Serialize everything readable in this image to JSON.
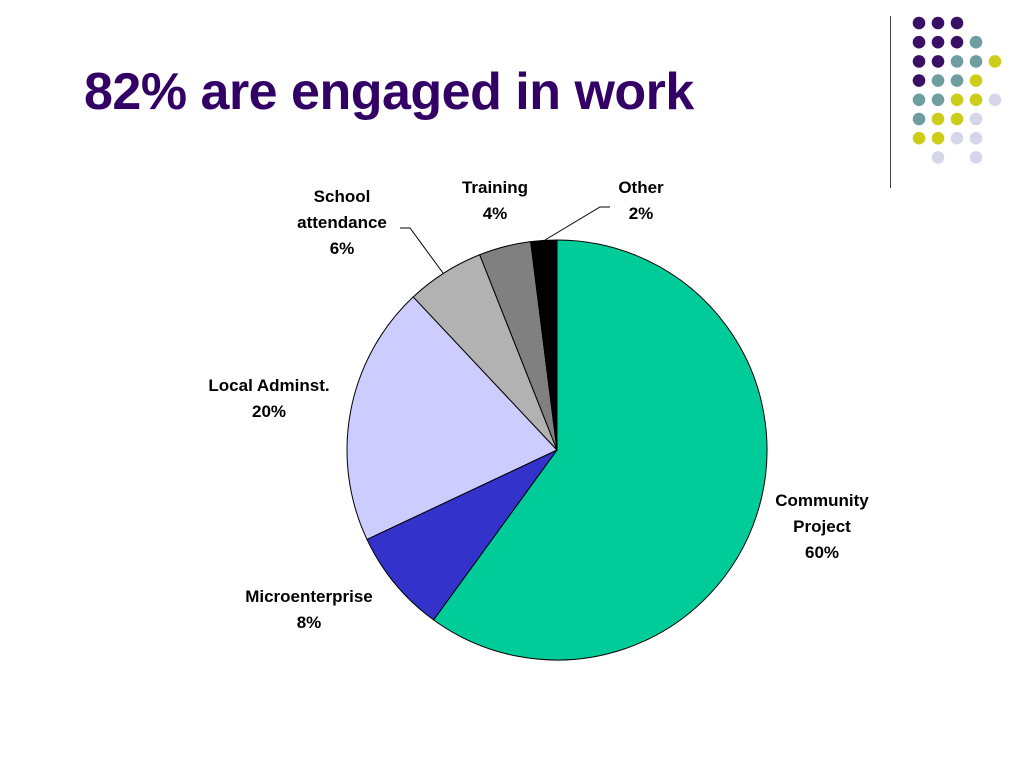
{
  "slide": {
    "title": "82% are engaged in work"
  },
  "decoration": {
    "dot_colors": {
      "purple": "#3a0f66",
      "teal": "#6f9ea0",
      "yellow": "#cccc1a",
      "lavender": "#d6d6ea"
    }
  },
  "chart_data": {
    "type": "pie",
    "title": "",
    "start": "12 o'clock",
    "direction": "clockwise",
    "slices": [
      {
        "label": "Community Project",
        "lines": [
          "Community",
          "Project",
          "60%"
        ],
        "value": 60,
        "color": "#00cc99"
      },
      {
        "label": "Microenterprise",
        "lines": [
          "Microenterprise",
          "8%"
        ],
        "value": 8,
        "color": "#3333cc"
      },
      {
        "label": "Local Adminst.",
        "lines": [
          "Local Adminst.",
          "20%"
        ],
        "value": 20,
        "color": "#ccccff"
      },
      {
        "label": "School attendance",
        "lines": [
          "School",
          "attendance",
          "6%"
        ],
        "value": 6,
        "color": "#b2b2b2"
      },
      {
        "label": "Training",
        "lines": [
          "Training",
          "4%"
        ],
        "value": 4,
        "color": "#808080"
      },
      {
        "label": "Other",
        "lines": [
          "Other",
          "2%"
        ],
        "value": 2,
        "color": "#000000"
      }
    ]
  }
}
